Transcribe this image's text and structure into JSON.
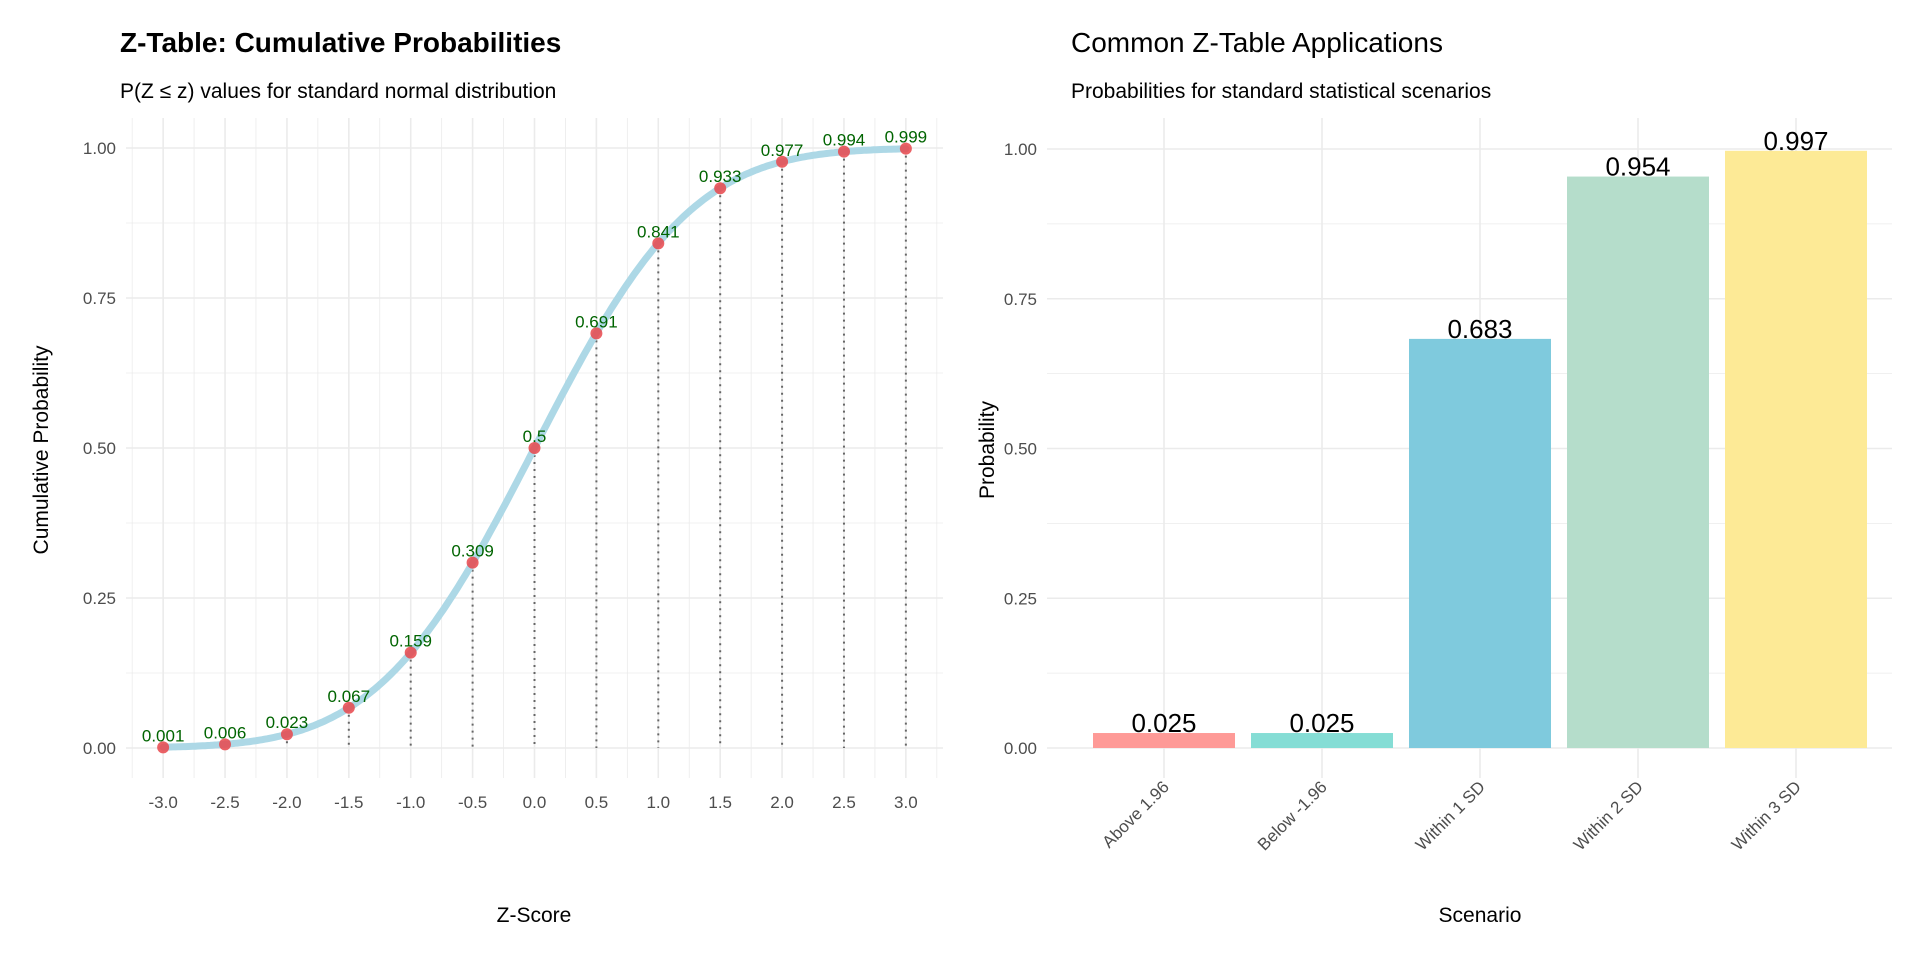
{
  "chart_data": [
    {
      "type": "line",
      "title": "Z-Table: Cumulative Probabilities",
      "subtitle": "P(Z ≤ z) values for standard normal distribution",
      "xlabel": "Z-Score",
      "ylabel": "Cumulative Probability",
      "x": [
        -3.0,
        -2.5,
        -2.0,
        -1.5,
        -1.0,
        -0.5,
        0.0,
        0.5,
        1.0,
        1.5,
        2.0,
        2.5,
        3.0
      ],
      "y": [
        0.001,
        0.006,
        0.023,
        0.067,
        0.159,
        0.309,
        0.5,
        0.691,
        0.841,
        0.933,
        0.977,
        0.994,
        0.999
      ],
      "labels": [
        "0.001",
        "0.006",
        "0.023",
        "0.067",
        "0.159",
        "0.309",
        "0.5",
        "0.691",
        "0.841",
        "0.933",
        "0.977",
        "0.994",
        "0.999"
      ],
      "xticks": [
        "-3.0",
        "-2.5",
        "-2.0",
        "-1.5",
        "-1.0",
        "-0.5",
        "0.0",
        "0.5",
        "1.0",
        "1.5",
        "2.0",
        "2.5",
        "3.0"
      ],
      "yticks": [
        "0.00",
        "0.25",
        "0.50",
        "0.75",
        "1.00"
      ],
      "xlim": [
        -3.3,
        3.3
      ],
      "ylim": [
        -0.05,
        1.05
      ],
      "grid": true,
      "colors": {
        "line": "#add8e6",
        "point": "#e8474b",
        "label": "#006400",
        "guide": "#666666"
      }
    },
    {
      "type": "bar",
      "title": "Common Z-Table Applications",
      "subtitle": "Probabilities for standard statistical scenarios",
      "xlabel": "Scenario",
      "ylabel": "Probability",
      "categories": [
        "Above 1.96",
        "Below -1.96",
        "Within 1 SD",
        "Within 2 SD",
        "Within 3 SD"
      ],
      "values": [
        0.025,
        0.025,
        0.683,
        0.954,
        0.997
      ],
      "labels": [
        "0.025",
        "0.025",
        "0.683",
        "0.954",
        "0.997"
      ],
      "yticks": [
        "0.00",
        "0.25",
        "0.50",
        "0.75",
        "1.00"
      ],
      "ylim": [
        0,
        1.05
      ],
      "grid": true,
      "colors": [
        "#fe9a97",
        "#85ddd5",
        "#7fcadd",
        "#b5ddcb",
        "#fdea96"
      ]
    }
  ]
}
